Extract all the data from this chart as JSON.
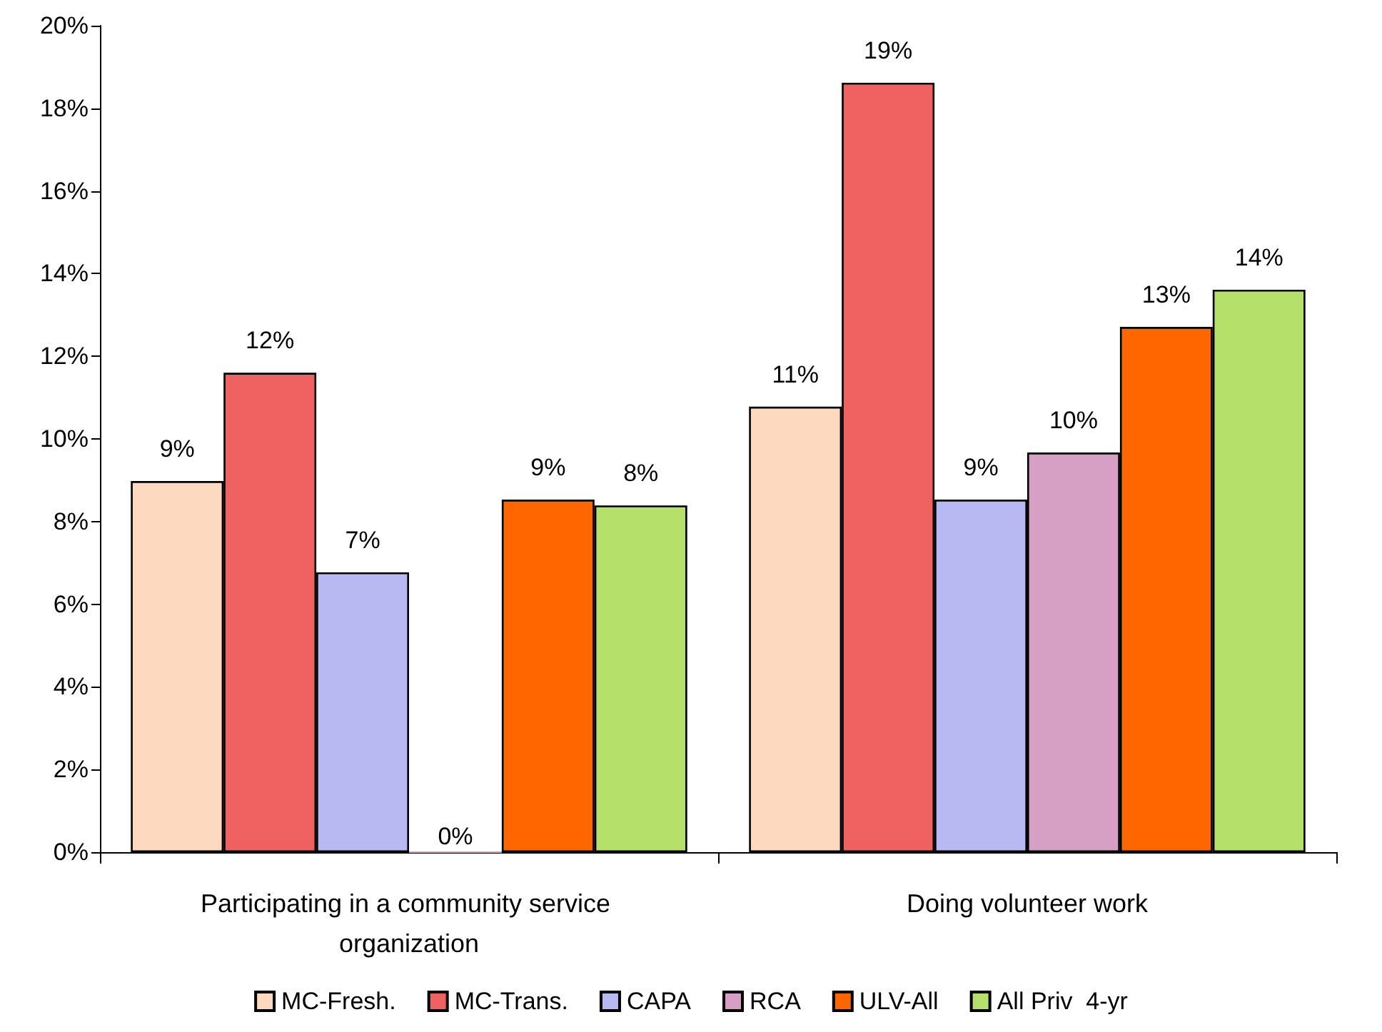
{
  "chart_data": {
    "type": "bar",
    "categories": [
      "Participating in a community service organization",
      "Doing volunteer work"
    ],
    "series": [
      {
        "name": "MC-Fresh.",
        "color": "#fcd9bf",
        "values": [
          8.98,
          10.78
        ],
        "value_labels": [
          "9%",
          "11%"
        ]
      },
      {
        "name": "MC-Trans.",
        "color": "#f06262",
        "values": [
          11.6,
          18.62
        ],
        "value_labels": [
          "12%",
          "19%"
        ]
      },
      {
        "name": "CAPA",
        "color": "#b8b8f2",
        "values": [
          6.77,
          8.53
        ],
        "value_labels": [
          "7%",
          "9%"
        ]
      },
      {
        "name": "RCA",
        "color": "#d6a0c4",
        "values": [
          0,
          9.67
        ],
        "value_labels": [
          "0%",
          "10%"
        ]
      },
      {
        "name": "ULV-All",
        "color": "#ff6600",
        "values": [
          8.53,
          12.71
        ],
        "value_labels": [
          "9%",
          "13%"
        ]
      },
      {
        "name": "All Priv  4-yr",
        "color": "#b5e06a",
        "values": [
          8.39,
          13.61
        ],
        "value_labels": [
          "8%",
          "14%"
        ]
      }
    ],
    "ylim": [
      0,
      20
    ],
    "yticks": [
      {
        "value": 0,
        "label": "0%"
      },
      {
        "value": 2,
        "label": "2%"
      },
      {
        "value": 4,
        "label": "4%"
      },
      {
        "value": 6,
        "label": "6%"
      },
      {
        "value": 8,
        "label": "8%"
      },
      {
        "value": 10,
        "label": "10%"
      },
      {
        "value": 12,
        "label": "12%"
      },
      {
        "value": 14,
        "label": "14%"
      },
      {
        "value": 16,
        "label": "16%"
      },
      {
        "value": 18,
        "label": "18%"
      },
      {
        "value": 20,
        "label": "20%"
      }
    ],
    "grid": false,
    "legend": "bottom"
  }
}
